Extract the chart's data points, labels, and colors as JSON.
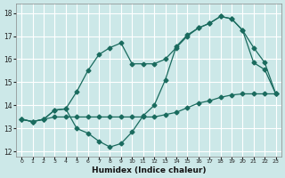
{
  "xlabel": "Humidex (Indice chaleur)",
  "bg_color": "#cce8e8",
  "grid_color": "#ffffff",
  "line_color": "#1a6b5e",
  "xlim": [
    -0.5,
    23.5
  ],
  "ylim": [
    11.8,
    18.4
  ],
  "xticks": [
    0,
    1,
    2,
    3,
    4,
    5,
    6,
    7,
    8,
    9,
    10,
    11,
    12,
    13,
    14,
    15,
    16,
    17,
    18,
    19,
    20,
    21,
    22,
    23
  ],
  "yticks": [
    12,
    13,
    14,
    15,
    16,
    17,
    18
  ],
  "series1_y": [
    13.4,
    13.3,
    13.4,
    13.5,
    13.5,
    13.5,
    13.5,
    13.5,
    13.5,
    13.5,
    13.5,
    13.5,
    13.5,
    13.6,
    13.7,
    13.9,
    14.1,
    14.2,
    14.35,
    14.45,
    14.5,
    14.5,
    14.5,
    14.5
  ],
  "series2_y": [
    13.4,
    13.3,
    13.4,
    13.8,
    13.85,
    13.0,
    12.8,
    12.45,
    12.2,
    12.35,
    12.85,
    13.55,
    14.0,
    15.1,
    16.55,
    17.05,
    17.35,
    17.55,
    17.85,
    17.75,
    17.25,
    15.85,
    15.55,
    14.5
  ],
  "series3_y": [
    13.4,
    13.3,
    13.4,
    13.8,
    13.85,
    14.6,
    15.5,
    16.2,
    16.5,
    16.7,
    15.8,
    15.8,
    15.8,
    16.0,
    16.5,
    17.0,
    17.35,
    17.55,
    17.85,
    17.75,
    17.25,
    16.5,
    15.85,
    14.5
  ]
}
